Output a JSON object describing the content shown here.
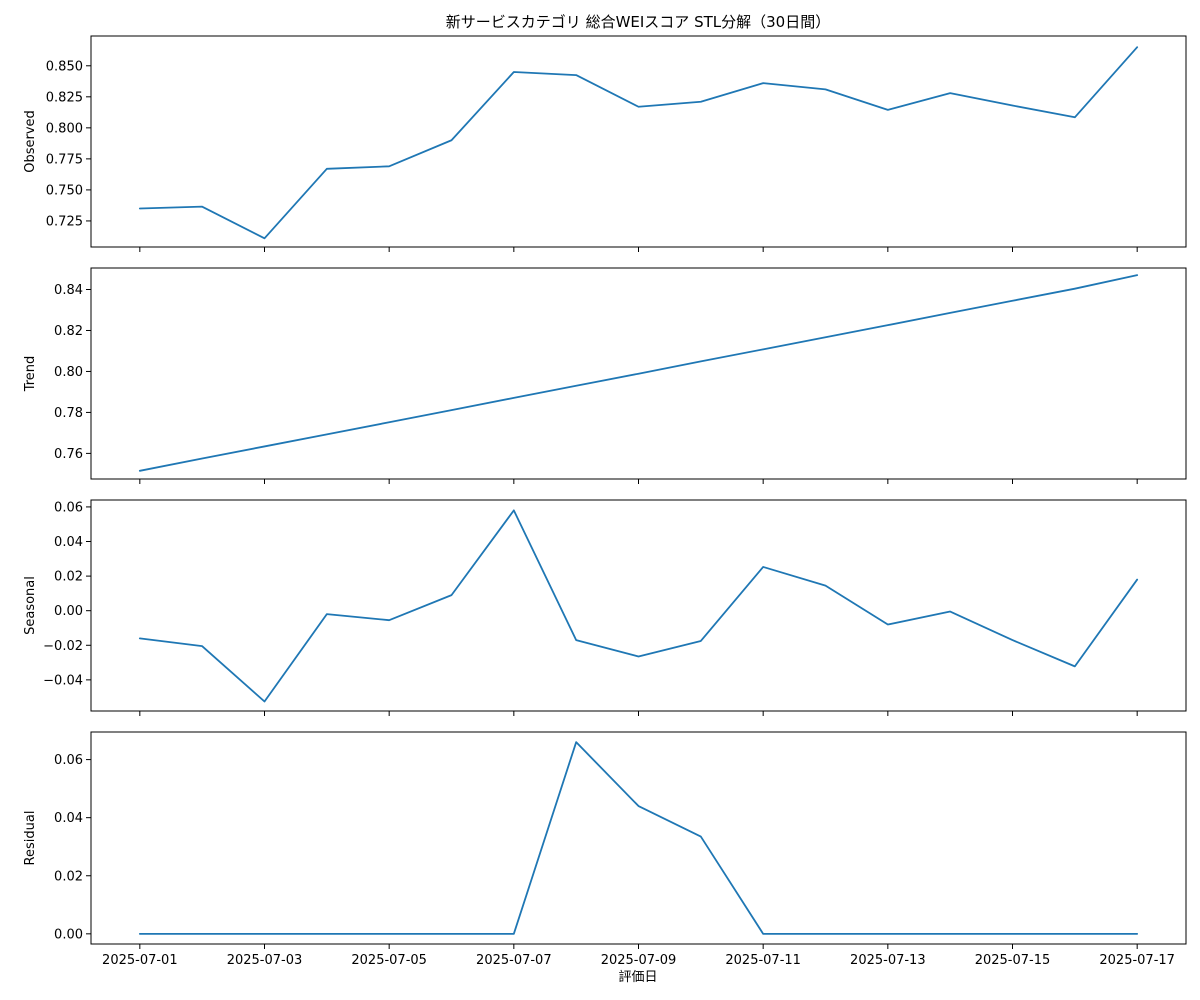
{
  "chart_data": {
    "type": "line",
    "title": "新サービスカテゴリ 総合WEIスコア STL分解（30日間）",
    "xlabel": "評価日",
    "line_color": "#1f77b4",
    "grid": false,
    "x": [
      "2025-07-01",
      "2025-07-02",
      "2025-07-03",
      "2025-07-04",
      "2025-07-05",
      "2025-07-06",
      "2025-07-07",
      "2025-07-08",
      "2025-07-09",
      "2025-07-10",
      "2025-07-11",
      "2025-07-12",
      "2025-07-13",
      "2025-07-14",
      "2025-07-15",
      "2025-07-16",
      "2025-07-17"
    ],
    "xlim": [
      "2025-06-30T05:12",
      "2025-07-17T18:48"
    ],
    "xticks": [
      "2025-07-01",
      "2025-07-03",
      "2025-07-05",
      "2025-07-07",
      "2025-07-09",
      "2025-07-11",
      "2025-07-13",
      "2025-07-15",
      "2025-07-17"
    ],
    "panels": [
      {
        "ylabel": "Observed",
        "ylim": [
          0.704,
          0.874
        ],
        "yticks": [
          "0.725",
          "0.750",
          "0.775",
          "0.800",
          "0.825",
          "0.850"
        ],
        "values": [
          0.735,
          0.7365,
          0.711,
          0.767,
          0.769,
          0.79,
          0.845,
          0.8425,
          0.817,
          0.821,
          0.836,
          0.831,
          0.8145,
          0.828,
          0.818,
          0.8085,
          0.865
        ]
      },
      {
        "ylabel": "Trend",
        "ylim": [
          0.7475,
          0.8505
        ],
        "yticks": [
          "0.76",
          "0.78",
          "0.80",
          "0.82",
          "0.84"
        ],
        "values": [
          0.7515,
          0.7575,
          0.7634,
          0.7693,
          0.7752,
          0.7811,
          0.7871,
          0.793,
          0.7989,
          0.8049,
          0.8108,
          0.8167,
          0.8226,
          0.8286,
          0.8345,
          0.8404,
          0.847
        ]
      },
      {
        "ylabel": "Seasonal",
        "ylim": [
          -0.058,
          0.064
        ],
        "yticks": [
          "−0.04",
          "−0.02",
          "0.00",
          "0.02",
          "0.04",
          "0.06"
        ],
        "values": [
          -0.016,
          -0.0205,
          -0.0525,
          -0.002,
          -0.0055,
          0.009,
          0.058,
          -0.017,
          -0.0265,
          -0.0175,
          0.0253,
          0.0145,
          -0.008,
          -0.0005,
          -0.017,
          -0.0322,
          0.018
        ]
      },
      {
        "ylabel": "Residual",
        "ylim": [
          -0.0035,
          0.0695
        ],
        "yticks": [
          "0.00",
          "0.02",
          "0.04",
          "0.06"
        ],
        "values": [
          0,
          0,
          0,
          0,
          0,
          0,
          0,
          0.066,
          0.044,
          0.0335,
          0,
          0,
          0,
          0,
          0,
          0,
          0
        ]
      }
    ]
  }
}
